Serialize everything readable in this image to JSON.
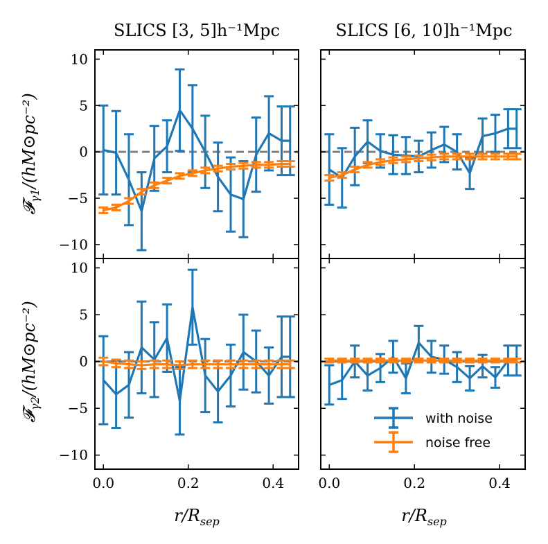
{
  "chart_data": {
    "type": "line",
    "colors": {
      "noisy": "#1f77b4",
      "clean": "#ff7f0e",
      "zero": "#808080"
    },
    "x_ticks": [
      0.0,
      0.2,
      0.4
    ],
    "x_tick_labels": [
      "0.0",
      "0.2",
      "0.4"
    ],
    "y_ticks": [
      -10,
      -5,
      0,
      5,
      10
    ],
    "y_tick_labels": [
      "−10",
      "−5",
      "0",
      "5",
      "10"
    ],
    "xlim": [
      -0.02,
      0.46
    ],
    "ylim": [
      -11.5,
      11
    ],
    "xlabel": {
      "main": "r/R",
      "sub": "sep"
    },
    "ylabels": [
      {
        "main": "𝓕",
        "sub": "γ1",
        "rest": "/(hM⊙pc⁻²)"
      },
      {
        "main": "𝓕",
        "sub": "γ2",
        "rest": "/(hM⊙pc⁻²)"
      }
    ],
    "col_titles": [
      "SLICS [3, 5]h⁻¹Mpc",
      "SLICS [6, 10]h⁻¹Mpc"
    ],
    "legend": {
      "noisy": "with noise",
      "clean": "noise free",
      "placement": "lower-right of bottom-right panel"
    },
    "panels": [
      {
        "id": "g1-3-5",
        "x": [
          0,
          0.03,
          0.06,
          0.09,
          0.12,
          0.15,
          0.18,
          0.21,
          0.24,
          0.27,
          0.3,
          0.33,
          0.36,
          0.39,
          0.42,
          0.44
        ],
        "noisy": [
          0.2,
          -0.1,
          -3.0,
          -6.4,
          -0.7,
          0.6,
          4.5,
          2.5,
          0.0,
          -2.7,
          -4.6,
          -5.1,
          -0.3,
          2.0,
          1.2,
          1.2
        ],
        "noisy_err": [
          4.8,
          4.5,
          4.9,
          4.2,
          3.5,
          2.8,
          4.4,
          4.7,
          3.9,
          3.7,
          4.0,
          4.1,
          4.0,
          4.0,
          3.7,
          3.7
        ],
        "clean": [
          -6.3,
          -6.0,
          -5.3,
          -4.3,
          -3.6,
          -3.1,
          -2.6,
          -2.3,
          -2.0,
          -1.8,
          -1.6,
          -1.5,
          -1.4,
          -1.4,
          -1.3,
          -1.3
        ],
        "clean_err": [
          0.3,
          0.3,
          0.3,
          0.3,
          0.3,
          0.3,
          0.3,
          0.3,
          0.3,
          0.3,
          0.3,
          0.3,
          0.3,
          0.3,
          0.3,
          0.3
        ]
      },
      {
        "id": "g1-6-10",
        "x": [
          0,
          0.03,
          0.06,
          0.09,
          0.12,
          0.15,
          0.18,
          0.21,
          0.24,
          0.27,
          0.3,
          0.33,
          0.36,
          0.39,
          0.42,
          0.44
        ],
        "noisy": [
          -1.9,
          -2.8,
          -0.5,
          1.1,
          0.1,
          -0.3,
          -0.4,
          -0.5,
          0.2,
          0.8,
          0.0,
          -2.3,
          1.7,
          2.0,
          2.5,
          2.5
        ],
        "noisy_err": [
          3.8,
          3.2,
          3.1,
          2.3,
          1.8,
          2.1,
          2.0,
          1.7,
          1.9,
          1.9,
          1.9,
          1.7,
          1.9,
          2.0,
          2.1,
          2.1
        ],
        "clean": [
          -2.8,
          -2.5,
          -1.9,
          -1.4,
          -1.1,
          -0.9,
          -0.8,
          -0.7,
          -0.6,
          -0.5,
          -0.5,
          -0.5,
          -0.5,
          -0.5,
          -0.5,
          -0.5
        ],
        "clean_err": [
          0.3,
          0.3,
          0.3,
          0.3,
          0.3,
          0.3,
          0.3,
          0.3,
          0.3,
          0.3,
          0.3,
          0.3,
          0.3,
          0.3,
          0.3,
          0.3
        ]
      },
      {
        "id": "g2-3-5",
        "x": [
          0,
          0.03,
          0.06,
          0.09,
          0.12,
          0.15,
          0.18,
          0.21,
          0.24,
          0.27,
          0.3,
          0.33,
          0.36,
          0.39,
          0.42,
          0.44
        ],
        "noisy": [
          -2.0,
          -3.5,
          -2.5,
          1.5,
          0.2,
          2.5,
          -4.2,
          5.8,
          -1.5,
          -3.2,
          -1.5,
          1.0,
          0.0,
          -1.5,
          0.5,
          0.5
        ],
        "noisy_err": [
          4.7,
          3.6,
          3.5,
          4.9,
          4.0,
          3.6,
          3.6,
          4.0,
          3.9,
          3.3,
          3.3,
          4.0,
          3.3,
          3.0,
          4.3,
          4.3
        ],
        "clean": [
          0.0,
          -0.2,
          -0.3,
          -0.4,
          -0.3,
          -0.3,
          -0.4,
          -0.3,
          -0.3,
          -0.3,
          -0.3,
          -0.3,
          -0.3,
          -0.3,
          -0.3,
          -0.3
        ],
        "clean_err": [
          0.4,
          0.4,
          0.4,
          0.4,
          0.4,
          0.4,
          0.4,
          0.4,
          0.4,
          0.4,
          0.4,
          0.4,
          0.4,
          0.4,
          0.4,
          0.4
        ]
      },
      {
        "id": "g2-6-10",
        "x": [
          0,
          0.03,
          0.06,
          0.09,
          0.12,
          0.15,
          0.18,
          0.21,
          0.24,
          0.27,
          0.3,
          0.33,
          0.36,
          0.39,
          0.42,
          0.44
        ],
        "noisy": [
          -2.5,
          -2.0,
          0.0,
          -1.5,
          -0.7,
          0.5,
          -1.8,
          2.0,
          0.5,
          0.2,
          -0.6,
          -1.8,
          -0.5,
          -1.7,
          0.1,
          0.1
        ],
        "noisy_err": [
          2.1,
          2.0,
          1.7,
          1.6,
          1.5,
          1.7,
          1.6,
          1.8,
          1.7,
          1.5,
          1.6,
          1.3,
          1.2,
          1.1,
          1.6,
          1.6
        ],
        "clean": [
          0.1,
          0.1,
          0.1,
          0.1,
          0.1,
          0.1,
          0.1,
          0.1,
          0.1,
          0.1,
          0.1,
          0.1,
          0.1,
          0.1,
          0.1,
          0.1
        ],
        "clean_err": [
          0.2,
          0.2,
          0.2,
          0.2,
          0.2,
          0.2,
          0.2,
          0.2,
          0.2,
          0.2,
          0.2,
          0.2,
          0.2,
          0.2,
          0.2,
          0.2
        ]
      }
    ]
  }
}
